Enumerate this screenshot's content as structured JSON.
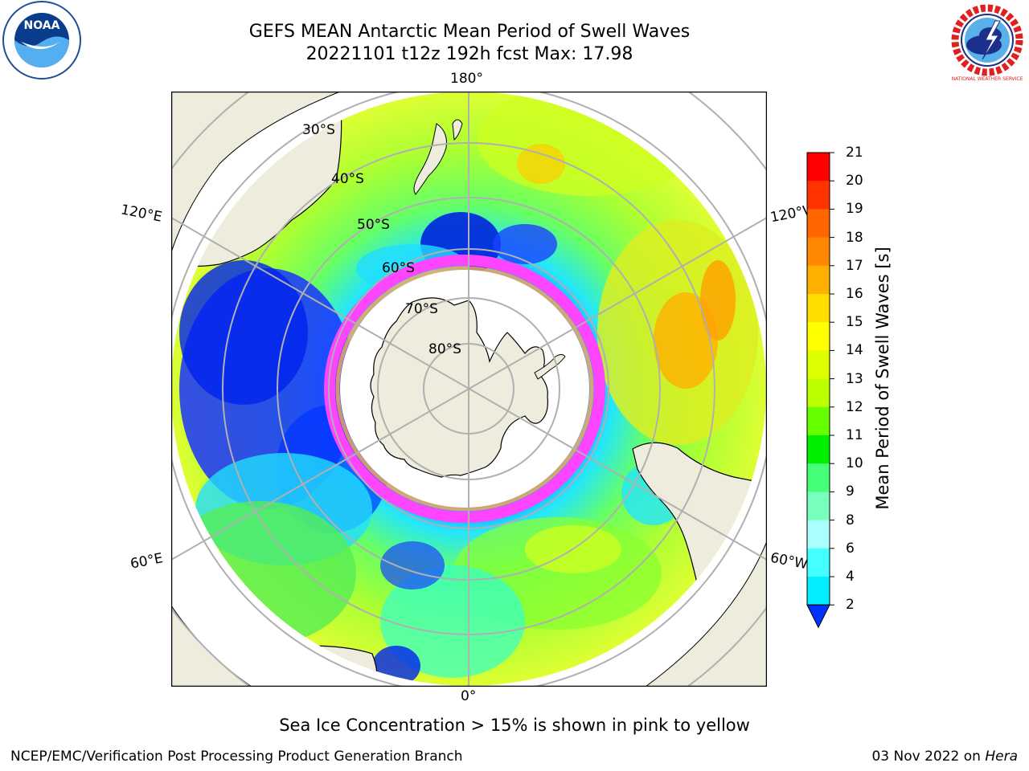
{
  "title": {
    "line1": "GEFS MEAN Antarctic Mean Period of Swell Waves",
    "line2": "20221101 t12z 192h fcst   Max: 17.98"
  },
  "logos": {
    "left": {
      "icon": "noaa-logo",
      "text": "NOAA"
    },
    "right": {
      "icon": "nws-logo",
      "text": "NATIONAL WEATHER SERVICE"
    }
  },
  "map": {
    "projection": "south-polar-stereographic",
    "longitude_labels": {
      "top": "180°",
      "bottom": "0°",
      "left_upper": "120°E",
      "left_lower": "60°E",
      "right_upper": "120°W",
      "right_lower": "60°W"
    },
    "latitude_labels": [
      "30°S",
      "40°S",
      "50°S",
      "60°S",
      "70°S",
      "80°S"
    ],
    "colors": {
      "land": "#eeecdc",
      "grid": "#b0b0b0",
      "sea_ice_low": "#ff44ff",
      "sea_ice_high": "#ffee66"
    }
  },
  "colorbar": {
    "label": "Mean Period of Swell Waves [s]",
    "ticks": [
      "21",
      "20",
      "19",
      "18",
      "17",
      "16",
      "15",
      "14",
      "13",
      "12",
      "11",
      "10",
      "9",
      "8",
      "6",
      "4",
      "2"
    ],
    "colors": [
      "#ff0000",
      "#ff3300",
      "#ff6600",
      "#ff8800",
      "#ffb000",
      "#ffdd00",
      "#ffff00",
      "#ddff00",
      "#bbff00",
      "#66ff00",
      "#00ee00",
      "#44ff77",
      "#77ffbb",
      "#aaffff",
      "#44ffff",
      "#00eeff",
      "#0088ff",
      "#0033ff"
    ]
  },
  "caption": "Sea Ice Concentration > 15% is shown in pink to yellow",
  "footer": {
    "left": "NCEP/EMC/Verification Post Processing Product Generation Branch",
    "right_date": "03 Nov 2022 on ",
    "right_host": "Hera"
  }
}
